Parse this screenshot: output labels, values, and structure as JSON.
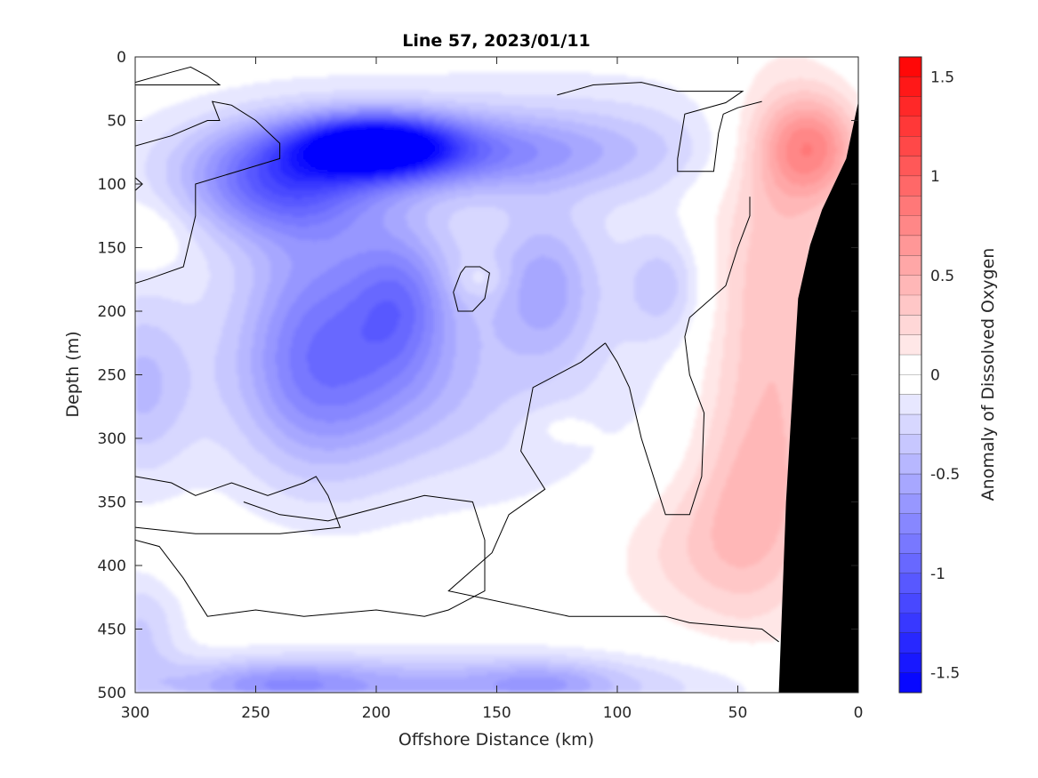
{
  "chart_data": {
    "type": "heatmap",
    "title": "Line 57, 2023/01/11",
    "xlabel": "Offshore Distance (km)",
    "ylabel": "Depth (m)",
    "colorbar_label": "Anomaly of Dissolved Oxygen",
    "xlim": [
      300,
      0
    ],
    "ylim": [
      0,
      500
    ],
    "x_reversed": true,
    "y_reversed": true,
    "x_ticks": [
      300,
      250,
      200,
      150,
      100,
      50,
      0
    ],
    "y_ticks": [
      0,
      50,
      100,
      150,
      200,
      250,
      300,
      350,
      400,
      450,
      500
    ],
    "colorbar_ticks": [
      1.5,
      1,
      0.5,
      0,
      -0.5,
      -1,
      -1.5
    ],
    "colorbar_range": [
      -1.6,
      1.6
    ],
    "colormap": {
      "negative": "#0000ff",
      "zero": "#ffffff",
      "positive": "#ff0000"
    },
    "contour_level": 0,
    "bathymetry_color": "#000000",
    "features": [
      {
        "name": "core-low",
        "x": 200,
        "y": 70,
        "value": -1.4,
        "sx": 22,
        "sy": 16
      },
      {
        "name": "upper-low-west",
        "x": 240,
        "y": 100,
        "value": -0.8,
        "sx": 28,
        "sy": 30
      },
      {
        "name": "upper-low-belt",
        "x": 170,
        "y": 75,
        "value": -0.6,
        "sx": 55,
        "sy": 22
      },
      {
        "name": "west-column",
        "x": 225,
        "y": 220,
        "value": -0.55,
        "sx": 22,
        "sy": 70
      },
      {
        "name": "mid-column",
        "x": 190,
        "y": 190,
        "value": -0.55,
        "sx": 15,
        "sy": 40
      },
      {
        "name": "mid-low",
        "x": 200,
        "y": 260,
        "value": -0.3,
        "sx": 40,
        "sy": 45
      },
      {
        "name": "patch-140",
        "x": 130,
        "y": 180,
        "value": -0.4,
        "sx": 15,
        "sy": 40
      },
      {
        "name": "patch-85",
        "x": 80,
        "y": 180,
        "value": -0.3,
        "sx": 12,
        "sy": 30
      },
      {
        "name": "broad-low",
        "x": 170,
        "y": 220,
        "value": -0.2,
        "sx": 90,
        "sy": 100
      },
      {
        "name": "upper-band",
        "x": 100,
        "y": 60,
        "value": -0.15,
        "sx": 120,
        "sy": 40
      },
      {
        "name": "bottom-low",
        "x": 190,
        "y": 495,
        "value": -0.5,
        "sx": 90,
        "sy": 18
      },
      {
        "name": "bottom-low-west",
        "x": 240,
        "y": 493,
        "value": -0.3,
        "sx": 25,
        "sy": 12
      },
      {
        "name": "bottom-low-east",
        "x": 130,
        "y": 493,
        "value": -0.25,
        "sx": 20,
        "sy": 12
      },
      {
        "name": "west-edge-low",
        "x": 298,
        "y": 260,
        "value": -0.35,
        "sx": 15,
        "sy": 50
      },
      {
        "name": "west-edge-low-deep",
        "x": 298,
        "y": 450,
        "value": -0.3,
        "sx": 12,
        "sy": 30
      },
      {
        "name": "coastal-high",
        "x": 20,
        "y": 70,
        "value": 0.75,
        "sx": 16,
        "sy": 30
      },
      {
        "name": "coastal-high-mid",
        "x": 35,
        "y": 200,
        "value": 0.45,
        "sx": 22,
        "sy": 120
      },
      {
        "name": "coastal-high-deep",
        "x": 45,
        "y": 360,
        "value": 0.3,
        "sx": 18,
        "sy": 60
      },
      {
        "name": "high-75",
        "x": 75,
        "y": 390,
        "value": 0.2,
        "sx": 22,
        "sy": 40
      },
      {
        "name": "high-125",
        "x": 125,
        "y": 290,
        "value": 0.1,
        "sx": 12,
        "sy": 12
      },
      {
        "name": "high-155",
        "x": 157,
        "y": 175,
        "value": 0.15,
        "sx": 8,
        "sy": 10
      },
      {
        "name": "high-295",
        "x": 295,
        "y": 140,
        "value": 0.15,
        "sx": 12,
        "sy": 18
      },
      {
        "name": "high-260",
        "x": 260,
        "y": 400,
        "value": 0.1,
        "sx": 20,
        "sy": 14
      }
    ],
    "bathymetry": [
      [
        0,
        35
      ],
      [
        5,
        80
      ],
      [
        15,
        120
      ],
      [
        20,
        148
      ],
      [
        25,
        190
      ],
      [
        30,
        350
      ],
      [
        33,
        500
      ],
      [
        0,
        500
      ]
    ],
    "contours": [
      [
        [
          300,
          20
        ],
        [
          285,
          12
        ],
        [
          277,
          8
        ],
        [
          270,
          15
        ],
        [
          265,
          22
        ],
        [
          285,
          22
        ],
        [
          300,
          22
        ]
      ],
      [
        [
          300,
          70
        ],
        [
          285,
          62
        ],
        [
          270,
          50
        ],
        [
          265,
          50
        ],
        [
          268,
          35
        ],
        [
          260,
          38
        ],
        [
          250,
          50
        ],
        [
          240,
          68
        ],
        [
          240,
          80
        ],
        [
          275,
          100
        ],
        [
          275,
          125
        ],
        [
          280,
          165
        ],
        [
          295,
          175
        ],
        [
          300,
          178
        ]
      ],
      [
        [
          300,
          95
        ],
        [
          297,
          100
        ],
        [
          300,
          105
        ]
      ],
      [
        [
          165,
          170
        ],
        [
          163,
          165
        ],
        [
          157,
          165
        ],
        [
          153,
          170
        ],
        [
          155,
          190
        ],
        [
          160,
          200
        ],
        [
          166,
          200
        ],
        [
          168,
          185
        ],
        [
          165,
          170
        ]
      ],
      [
        [
          125,
          30
        ],
        [
          110,
          22
        ],
        [
          90,
          20
        ],
        [
          75,
          27
        ],
        [
          48,
          27
        ],
        [
          55,
          36
        ],
        [
          72,
          45
        ],
        [
          75,
          80
        ],
        [
          75,
          90
        ],
        [
          60,
          90
        ],
        [
          58,
          60
        ],
        [
          56,
          45
        ],
        [
          50,
          40
        ],
        [
          40,
          35
        ]
      ],
      [
        [
          300,
          330
        ],
        [
          285,
          335
        ],
        [
          275,
          345
        ],
        [
          260,
          335
        ],
        [
          245,
          345
        ],
        [
          230,
          335
        ],
        [
          225,
          330
        ],
        [
          220,
          345
        ],
        [
          215,
          370
        ],
        [
          240,
          375
        ],
        [
          275,
          375
        ],
        [
          300,
          370
        ]
      ],
      [
        [
          300,
          380
        ],
        [
          290,
          385
        ],
        [
          280,
          410
        ],
        [
          270,
          440
        ],
        [
          250,
          435
        ],
        [
          230,
          440
        ],
        [
          200,
          435
        ],
        [
          180,
          440
        ],
        [
          170,
          435
        ],
        [
          155,
          420
        ],
        [
          155,
          380
        ],
        [
          160,
          350
        ],
        [
          180,
          345
        ],
        [
          200,
          355
        ],
        [
          220,
          365
        ],
        [
          240,
          360
        ],
        [
          255,
          350
        ]
      ],
      [
        [
          105,
          225
        ],
        [
          115,
          240
        ],
        [
          135,
          260
        ],
        [
          140,
          310
        ],
        [
          130,
          340
        ],
        [
          145,
          360
        ],
        [
          152,
          390
        ],
        [
          170,
          420
        ],
        [
          120,
          440
        ],
        [
          110,
          440
        ],
        [
          80,
          440
        ],
        [
          70,
          445
        ],
        [
          40,
          450
        ],
        [
          33,
          460
        ]
      ],
      [
        [
          105,
          225
        ],
        [
          100,
          240
        ],
        [
          95,
          260
        ],
        [
          90,
          300
        ],
        [
          80,
          360
        ],
        [
          70,
          360
        ],
        [
          65,
          330
        ],
        [
          64,
          280
        ],
        [
          70,
          250
        ],
        [
          72,
          220
        ],
        [
          70,
          205
        ],
        [
          55,
          180
        ],
        [
          50,
          150
        ],
        [
          45,
          125
        ],
        [
          45,
          110
        ]
      ]
    ]
  }
}
